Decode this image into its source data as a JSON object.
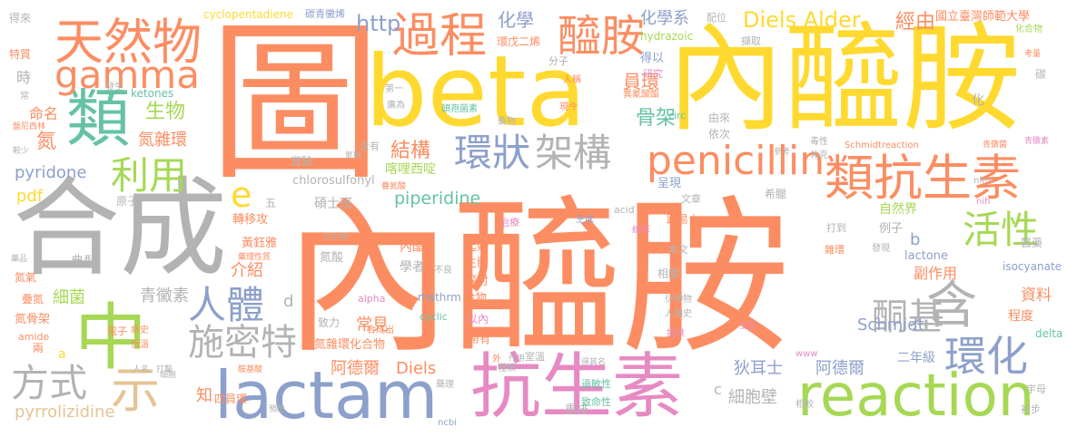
{
  "palette": {
    "orange": "#fc8d62",
    "yellow": "#ffd92f",
    "blue": "#8da0cb",
    "green": "#a6d854",
    "pink": "#e78ac3",
    "teal": "#66c2a5",
    "tan": "#e5c494",
    "gray": "#b3b3b3"
  },
  "words": {
    "nei_xian_an_big": "內醯胺",
    "he_cheng": "合成",
    "tu": "圖",
    "beta": "beta",
    "nei_xian_an_top": "內醯胺",
    "lactam": "lactam",
    "kang_sheng_su": "抗生素",
    "reaction": "reaction",
    "zhong": "中",
    "lei": "類",
    "tian_ran_wu": "天然物",
    "gamma": "gamma",
    "guo_cheng": "過程",
    "xian_an": "醯胺",
    "lei_kang_sheng_su": "類抗生素",
    "penicillin": "penicillin",
    "huan_zhuang": "環狀",
    "jia_gou": "架構",
    "ren_ti": "人體",
    "shi_mi_te": "施密特",
    "shi": "示",
    "fang_shi": "方式",
    "han": "含",
    "tong_ji": "酮基",
    "huan_hua": "環化",
    "huo_xing": "活性",
    "li_yong": "利用",
    "e": "e",
    "diels_alder": "Diels Alder",
    "jie_gou": "結構",
    "sheng_wu": "生物",
    "hua_xue": "化學",
    "http": "http",
    "yuan_huan": "員環",
    "gu_jia": "骨架",
    "di_huan_xi": "環戊二烯",
    "hua_xue_xi": "化學系",
    "hydrazoic": "hydrazoic",
    "de_yi": "得以",
    "jing_you": "經由",
    "taiwan_normal": "國立臺灣師範大學",
    "cyclopentadiene": "cyclopentadiene",
    "carbonyl_cyanide": "碳青黴烯",
    "ketones": "ketones",
    "dan_za_huan": "氮雜環",
    "pyridone": "pyridone",
    "pdf": "pdf",
    "ming_ming": "命名",
    "dan": "氮",
    "chlorosulfonyl": "chlorosulfonyl",
    "piperidine": "piperidine",
    "ka_li_xi_ding": "喀哩西啶",
    "shuo_shi_ban": "碩士班",
    "zhi_kang": "轉移攻",
    "dian_xing": "典型",
    "qing_mei_su": "青黴素",
    "xi_jun": "細菌",
    "jie_shao": "介紹",
    "pyrrolizidine": "pyrrolizidine",
    "zhi": "知",
    "a_de_er_1": "阿德爾",
    "diels": "Diels",
    "a_de_er_2": "阿德爾",
    "di_er_shi": "狄耳士",
    "schmidt": "Schmidt",
    "fu_zuo_yong": "副作用",
    "zi_liao": "資料",
    "cheng_du": "程度",
    "xi_bao_bi": "細胞壁",
    "chang_jian": "常見",
    "zhi_li": "致力",
    "dan_za_huan_hua_he_wu": "氮雜環化合物",
    "huang_jin_ya": "黃鈺雅",
    "er_nian_ji": "二年級",
    "lactone": "lactone",
    "isocyanate": "isocyanate",
    "ran_jie": "自然界",
    "li_zi": "例子",
    "delta": "delta",
    "b": "b",
    "d": "d",
    "c": "c",
    "alpha": "alpha",
    "mathrm": "mathrm",
    "cyclic": "cyclic",
    "acid": "acid",
    "amide": "amide",
    "chong_pai": "重排",
    "si_mi_te": "Schmidtreaction",
    "nei_zhi": "內酯",
    "xue_zhe": "學者",
    "qi_shi": "起始",
    "zhu_ti": "主體",
    "tan_tao": "探討",
    "he_wu": "合物",
    "ben_wen": "本文",
    "wen_zhang": "文章",
    "lu_yi_shi": "路易士",
    "cheng_xian": "呈現",
    "xi_la": "希臘",
    "zhi_liao": "治療",
    "qie_san": "切三",
    "da_dao": "打到",
    "dan_suan": "氮酸",
    "za_huan": "雜環",
    "si_ji": "四員環",
    "yao_li_xing_zhi": "藥理性質",
    "yi_nei": "以內",
    "dai_you": "帶有",
    "shi_wen": "室溫",
    "yi_dai": "一代",
    "nlm": "nlm",
    "ncbi": "ncbi",
    "www": "www",
    "nih": "nih",
    "circ": "circ",
    "yu_mou": "宇母",
    "chu_bu": "初步",
    "xiang_jiao": "相較",
    "you_lai": "由來",
    "yi_ci": "依次",
    "tong_huang": "酮黃",
    "qing_mei_jun": "青黴菌",
    "du_xing": "毒性",
    "xiu_ke": "休克",
    "can_kao": "參考",
    "mei_yao": "醫藥",
    "yuan_zi": "原子",
    "wu": "五",
    "shi_yan": "實驗",
    "han_you": "含有",
    "hua": "化",
    "tan": "碳",
    "fa_xian": "發現",
    "de_lai": "得來",
    "te_zhi": "特質",
    "shi_side": "時",
    "chang": "常",
    "pan_ni_xi_lin": "盤尼西林",
    "jiao_shao": "較少",
    "yao_pin": "藥品",
    "dan_qi": "氮氣",
    "die_dan": "疊氮",
    "dan_gu_jia": "氮骨架",
    "liang": "兩",
    "a": "a",
    "jie_qu": "擷取",
    "yan_jiu": "研究",
    "fen_zi": "分子",
    "pei_wei": "配位",
    "hua_he_wu": "化合物",
    "kao_liang": "考量",
    "qu_tong": "吡酮",
    "di_yi": "第一",
    "guang_wei": "廣為",
    "wu_tu": "圖中",
    "tou_bao": "頭孢菌素",
    "ren_ming": "人稱",
    "xian_ling": "現今",
    "yi_qing_suan_zhi": "異氰酸酯",
    "bu_liang": "不良",
    "gan_ran": "感染",
    "zhong_lei": "種類",
    "yao_li": "藥理",
    "guo_min_xing": "過敏性",
    "zhi_ming_xing": "致命性",
    "sheng_cheng": "生成",
    "xian_xing": "線形",
    "yan_shen_wu": "衍伸物",
    "ren_lei_shi": "人類史",
    "zhu_yin": "主因",
    "ti_gong": "提供",
    "xiang_guan": "相關",
    "xi_bao": "細胞",
    "da_ji": "打擊",
    "ren_ming2": "人名",
    "bing_shi": "病史",
    "di_wen": "低溫",
    "dian_zi": "電子",
    "yu_fang": "預防",
    "an_ji_suan": "胺基酸",
    "de_qi_ming": "得其名",
    "wai": "外",
    "zuo_yong": "作用",
    "yan_sheng_wu": "衍生物",
    "he_cheng_chu": "合成出",
    "shuang_jian": "雙鍵",
    "yao_wu": "藥物",
    "fa_sheng": "發生",
    "qing_mei_su2": "青黴素",
    "die_dan_suan": "疊氮酸",
    "xiao_lv": "效率",
    "dan_tan": "氮碳",
    "dian_yu": "電荷",
    "quan": "圈",
    "wei_ti": "位體"
  }
}
